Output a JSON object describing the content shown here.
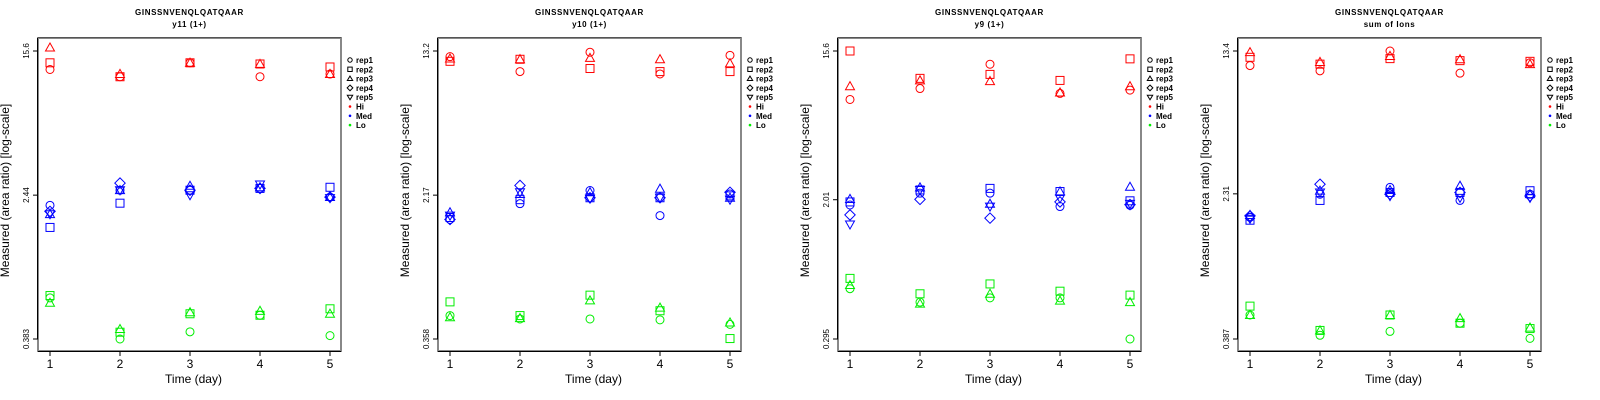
{
  "colors": {
    "Hi": "#ff0000",
    "Med": "#0000ff",
    "Lo": "#00ee00",
    "axis": "#000000",
    "frame_shadow": "#888888"
  },
  "legend": {
    "reps": [
      {
        "label": "rep1",
        "shape": "circle"
      },
      {
        "label": "rep2",
        "shape": "square"
      },
      {
        "label": "rep3",
        "shape": "triangle-up"
      },
      {
        "label": "rep4",
        "shape": "diamond"
      },
      {
        "label": "rep5",
        "shape": "triangle-down"
      }
    ],
    "groups": [
      {
        "label": "Hi",
        "color_key": "Hi"
      },
      {
        "label": "Med",
        "color_key": "Med"
      },
      {
        "label": "Lo",
        "color_key": "Lo"
      }
    ]
  },
  "chart_data": [
    {
      "type": "scatter",
      "title": "GINSSNVENQLQATQAAR",
      "subtitle": "y11 (1+)",
      "xlabel": "Time (day)",
      "ylabel": "Measured (area ratio) [log-scale]",
      "yscale": "log",
      "x_ticks": [
        "1",
        "2",
        "3",
        "4",
        "5"
      ],
      "y_ticks": [
        {
          "value": 15.6,
          "label": "15.6"
        },
        {
          "value": 2.44,
          "label": "2.44"
        },
        {
          "value": 0.383,
          "label": "0.383"
        }
      ],
      "legend_position": "right",
      "series": [
        {
          "group": "Hi",
          "rep": "rep1",
          "x": [
            1,
            2,
            3,
            4,
            5
          ],
          "y": [
            12.3,
            11.2,
            13.4,
            11.2,
            11.6
          ]
        },
        {
          "group": "Hi",
          "rep": "rep2",
          "x": [
            1,
            2,
            3,
            4,
            5
          ],
          "y": [
            13.4,
            11.2,
            13.4,
            13.2,
            12.7
          ]
        },
        {
          "group": "Hi",
          "rep": "rep3",
          "x": [
            1,
            2,
            3,
            4,
            5
          ],
          "y": [
            16.3,
            11.6,
            13.4,
            13.2,
            11.6
          ]
        },
        {
          "group": "Med",
          "rep": "rep1",
          "x": [
            1,
            2,
            3,
            4,
            5
          ],
          "y": [
            2.14,
            2.6,
            2.6,
            2.66,
            2.38
          ]
        },
        {
          "group": "Med",
          "rep": "rep2",
          "x": [
            1,
            2,
            3,
            4,
            5
          ],
          "y": [
            1.61,
            2.2,
            2.6,
            2.66,
            2.7
          ]
        },
        {
          "group": "Med",
          "rep": "rep3",
          "x": [
            1,
            2,
            3,
            4,
            5
          ],
          "y": [
            1.91,
            2.6,
            2.75,
            2.7,
            2.38
          ]
        },
        {
          "group": "Med",
          "rep": "rep4",
          "x": [
            1,
            2,
            3,
            4,
            5
          ],
          "y": [
            1.98,
            2.85,
            2.6,
            2.66,
            2.38
          ]
        },
        {
          "group": "Med",
          "rep": "rep5",
          "x": [
            1,
            2,
            3,
            4,
            5
          ],
          "y": [
            1.91,
            2.6,
            2.44,
            2.8,
            2.35
          ]
        },
        {
          "group": "Lo",
          "rep": "rep1",
          "x": [
            1,
            2,
            3,
            4,
            5
          ],
          "y": [
            0.65,
            0.383,
            0.42,
            0.52,
            0.4
          ]
        },
        {
          "group": "Lo",
          "rep": "rep2",
          "x": [
            1,
            2,
            3,
            4,
            5
          ],
          "y": [
            0.67,
            0.418,
            0.53,
            0.52,
            0.565
          ]
        },
        {
          "group": "Lo",
          "rep": "rep3",
          "x": [
            1,
            2,
            3,
            4,
            5
          ],
          "y": [
            0.61,
            0.435,
            0.54,
            0.55,
            0.53
          ]
        }
      ]
    },
    {
      "type": "scatter",
      "title": "GINSSNVENQLQATQAAR",
      "subtitle": "y10 (1+)",
      "xlabel": "Time (day)",
      "ylabel": "Measured (area ratio) [log-scale]",
      "yscale": "log",
      "x_ticks": [
        "1",
        "2",
        "3",
        "4",
        "5"
      ],
      "y_ticks": [
        {
          "value": 13.2,
          "label": "13.2"
        },
        {
          "value": 2.17,
          "label": "2.17"
        },
        {
          "value": 0.358,
          "label": "0.358"
        }
      ],
      "legend_position": "right",
      "series": [
        {
          "group": "Hi",
          "rep": "rep1",
          "x": [
            1,
            2,
            3,
            4,
            5
          ],
          "y": [
            12.3,
            10.2,
            13.0,
            9.9,
            12.5
          ]
        },
        {
          "group": "Hi",
          "rep": "rep2",
          "x": [
            1,
            2,
            3,
            4,
            5
          ],
          "y": [
            11.6,
            11.9,
            10.6,
            10.2,
            10.2
          ]
        },
        {
          "group": "Hi",
          "rep": "rep3",
          "x": [
            1,
            2,
            3,
            4,
            5
          ],
          "y": [
            12.0,
            11.9,
            12.1,
            11.9,
            11.3
          ]
        },
        {
          "group": "Med",
          "rep": "rep1",
          "x": [
            1,
            2,
            3,
            4,
            5
          ],
          "y": [
            1.6,
            1.95,
            2.3,
            1.68,
            2.2
          ]
        },
        {
          "group": "Med",
          "rep": "rep2",
          "x": [
            1,
            2,
            3,
            4,
            5
          ],
          "y": [
            1.64,
            2.05,
            2.1,
            2.1,
            2.15
          ]
        },
        {
          "group": "Med",
          "rep": "rep3",
          "x": [
            1,
            2,
            3,
            4,
            5
          ],
          "y": [
            1.75,
            2.2,
            2.25,
            2.35,
            2.1
          ]
        },
        {
          "group": "Med",
          "rep": "rep4",
          "x": [
            1,
            2,
            3,
            4,
            5
          ],
          "y": [
            1.6,
            2.45,
            2.1,
            2.1,
            2.25
          ]
        },
        {
          "group": "Med",
          "rep": "rep5",
          "x": [
            1,
            2,
            3,
            4,
            5
          ],
          "y": [
            1.68,
            2.25,
            2.08,
            2.1,
            2.05
          ]
        },
        {
          "group": "Lo",
          "rep": "rep1",
          "x": [
            1,
            2,
            3,
            4,
            5
          ],
          "y": [
            0.48,
            0.46,
            0.46,
            0.455,
            0.43
          ]
        },
        {
          "group": "Lo",
          "rep": "rep2",
          "x": [
            1,
            2,
            3,
            4,
            5
          ],
          "y": [
            0.57,
            0.48,
            0.62,
            0.51,
            0.36
          ]
        },
        {
          "group": "Lo",
          "rep": "rep3",
          "x": [
            1,
            2,
            3,
            4,
            5
          ],
          "y": [
            0.47,
            0.465,
            0.58,
            0.53,
            0.44
          ]
        }
      ]
    },
    {
      "type": "scatter",
      "title": "GINSSNVENQLQATQAAR",
      "subtitle": "y9 (1+)",
      "xlabel": "Time (day)",
      "ylabel": "Measured (area ratio) [log-scale]",
      "yscale": "log",
      "x_ticks": [
        "1",
        "2",
        "3",
        "4",
        "5"
      ],
      "y_ticks": [
        {
          "value": 15.6,
          "label": "15.6"
        },
        {
          "value": 2.01,
          "label": "2.01"
        },
        {
          "value": 0.295,
          "label": "0.295"
        }
      ],
      "legend_position": "right",
      "series": [
        {
          "group": "Hi",
          "rep": "rep1",
          "x": [
            1,
            2,
            3,
            4,
            5
          ],
          "y": [
            8.0,
            9.3,
            13.0,
            8.7,
            9.1
          ]
        },
        {
          "group": "Hi",
          "rep": "rep2",
          "x": [
            1,
            2,
            3,
            4,
            5
          ],
          "y": [
            15.6,
            10.7,
            11.3,
            10.4,
            14.0
          ]
        },
        {
          "group": "Hi",
          "rep": "rep3",
          "x": [
            1,
            2,
            3,
            4,
            5
          ],
          "y": [
            9.6,
            10.4,
            10.3,
            8.8,
            9.6
          ]
        },
        {
          "group": "Med",
          "rep": "rep1",
          "x": [
            1,
            2,
            3,
            4,
            5
          ],
          "y": [
            1.87,
            2.2,
            2.2,
            1.83,
            1.86
          ]
        },
        {
          "group": "Med",
          "rep": "rep2",
          "x": [
            1,
            2,
            3,
            4,
            5
          ],
          "y": [
            1.95,
            2.3,
            2.35,
            2.25,
            1.98
          ]
        },
        {
          "group": "Med",
          "rep": "rep3",
          "x": [
            1,
            2,
            3,
            4,
            5
          ],
          "y": [
            2.03,
            2.38,
            1.9,
            2.25,
            2.4
          ]
        },
        {
          "group": "Med",
          "rep": "rep4",
          "x": [
            1,
            2,
            3,
            4,
            5
          ],
          "y": [
            1.63,
            2.02,
            1.56,
            1.95,
            1.88
          ]
        },
        {
          "group": "Med",
          "rep": "rep5",
          "x": [
            1,
            2,
            3,
            4,
            5
          ],
          "y": [
            1.43,
            2.3,
            1.83,
            2.05,
            1.9
          ]
        },
        {
          "group": "Lo",
          "rep": "rep1",
          "x": [
            1,
            2,
            3,
            4,
            5
          ],
          "y": [
            0.59,
            0.49,
            0.52,
            0.52,
            0.295
          ]
        },
        {
          "group": "Lo",
          "rep": "rep2",
          "x": [
            1,
            2,
            3,
            4,
            5
          ],
          "y": [
            0.68,
            0.55,
            0.63,
            0.57,
            0.54
          ]
        },
        {
          "group": "Lo",
          "rep": "rep3",
          "x": [
            1,
            2,
            3,
            4,
            5
          ],
          "y": [
            0.62,
            0.48,
            0.55,
            0.5,
            0.49
          ]
        }
      ]
    },
    {
      "type": "scatter",
      "title": "GINSSNVENQLQATQAAR",
      "subtitle": "sum of Ions",
      "xlabel": "Time (day)",
      "ylabel": "Measured (area ratio) [log-scale]",
      "yscale": "log",
      "x_ticks": [
        "1",
        "2",
        "3",
        "4",
        "5"
      ],
      "y_ticks": [
        {
          "value": 13.4,
          "label": "13.4"
        },
        {
          "value": 2.31,
          "label": "2.31"
        },
        {
          "value": 0.387,
          "label": "0.387"
        }
      ],
      "legend_position": "right",
      "series": [
        {
          "group": "Hi",
          "rep": "rep1",
          "x": [
            1,
            2,
            3,
            4,
            5
          ],
          "y": [
            11.2,
            10.5,
            13.4,
            10.2,
            11.6
          ]
        },
        {
          "group": "Hi",
          "rep": "rep2",
          "x": [
            1,
            2,
            3,
            4,
            5
          ],
          "y": [
            12.4,
            11.4,
            12.2,
            11.9,
            11.8
          ]
        },
        {
          "group": "Hi",
          "rep": "rep3",
          "x": [
            1,
            2,
            3,
            4,
            5
          ],
          "y": [
            13.2,
            11.7,
            12.6,
            12.1,
            11.4
          ]
        },
        {
          "group": "Med",
          "rep": "rep1",
          "x": [
            1,
            2,
            3,
            4,
            5
          ],
          "y": [
            1.73,
            2.3,
            2.5,
            2.13,
            2.3
          ]
        },
        {
          "group": "Med",
          "rep": "rep2",
          "x": [
            1,
            2,
            3,
            4,
            5
          ],
          "y": [
            1.67,
            2.13,
            2.35,
            2.35,
            2.4
          ]
        },
        {
          "group": "Med",
          "rep": "rep3",
          "x": [
            1,
            2,
            3,
            4,
            5
          ],
          "y": [
            1.78,
            2.4,
            2.42,
            2.55,
            2.3
          ]
        },
        {
          "group": "Med",
          "rep": "rep4",
          "x": [
            1,
            2,
            3,
            4,
            5
          ],
          "y": [
            1.76,
            2.6,
            2.3,
            2.35,
            2.25
          ]
        },
        {
          "group": "Med",
          "rep": "rep5",
          "x": [
            1,
            2,
            3,
            4,
            5
          ],
          "y": [
            1.7,
            2.35,
            2.25,
            2.2,
            2.2
          ]
        },
        {
          "group": "Lo",
          "rep": "rep1",
          "x": [
            1,
            2,
            3,
            4,
            5
          ],
          "y": [
            0.52,
            0.405,
            0.425,
            0.47,
            0.39
          ]
        },
        {
          "group": "Lo",
          "rep": "rep2",
          "x": [
            1,
            2,
            3,
            4,
            5
          ],
          "y": [
            0.58,
            0.43,
            0.52,
            0.47,
            0.44
          ]
        },
        {
          "group": "Lo",
          "rep": "rep3",
          "x": [
            1,
            2,
            3,
            4,
            5
          ],
          "y": [
            0.52,
            0.43,
            0.52,
            0.5,
            0.445
          ]
        }
      ]
    }
  ]
}
